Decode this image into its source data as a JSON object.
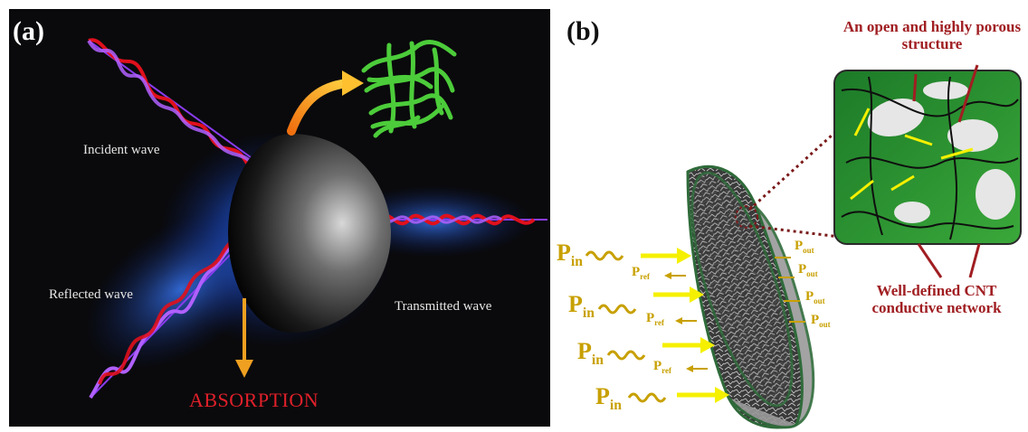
{
  "panel_a": {
    "label": "(a)",
    "incident_label": "Incident wave",
    "reflected_label": "Reflected wave",
    "transmitted_label": "Transmitted wave",
    "absorption_label": "ABSORPTION"
  },
  "panel_b": {
    "label": "(b)",
    "callout_top": "An open and highly porous structure",
    "callout_bottom": "Well-defined CNT conductive network",
    "p_in": "P",
    "p_in_sub": "in",
    "p_ref": "P",
    "p_ref_sub": "ref",
    "p_out": "P",
    "p_out_sub": "out"
  },
  "colors": {
    "background_a": "#0a0a0c",
    "glow": "#1c5fe0",
    "wave_red": "#e0101c",
    "wave_violet": "#8a3cf0",
    "arrow_orange": "#f0a020",
    "cnt_green": "#4ccc3a",
    "label_red": "#a01e22",
    "p_gold": "#c8a000",
    "arrow_yellow": "#f5f000"
  }
}
